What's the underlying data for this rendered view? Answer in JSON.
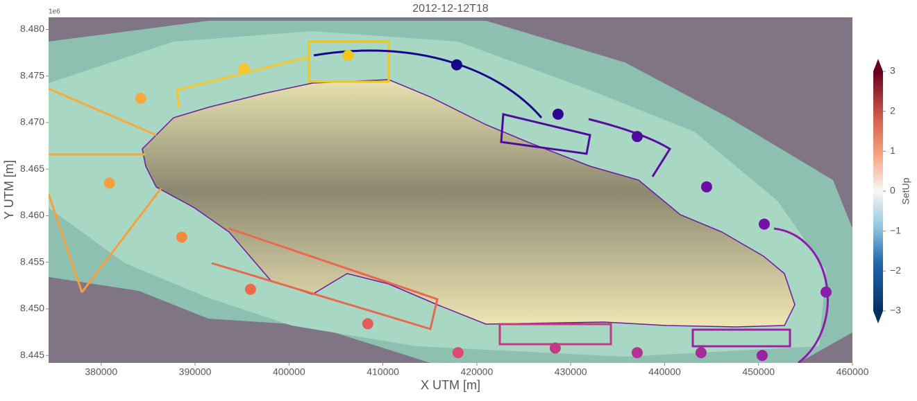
{
  "chart_data": {
    "type": "scatter",
    "title": "2012-12-12T18",
    "x_label": "X UTM [m]",
    "y_label": "Y UTM [m]",
    "y_offset": "1e6",
    "xlim": [
      374400,
      460000
    ],
    "xticks": [
      380000,
      390000,
      400000,
      410000,
      420000,
      430000,
      440000,
      450000,
      460000
    ],
    "ylim": [
      8.4442,
      8.4813
    ],
    "yticks": [
      8.445,
      {
        "value": 8.45,
        "label": "8.450"
      },
      8.455,
      {
        "value": 8.46,
        "label": "8.460"
      },
      8.465,
      {
        "value": 8.47,
        "label": "8.470"
      },
      8.475,
      {
        "value": 8.48,
        "label": "8.480"
      }
    ],
    "x": [
      406300,
      395230,
      384210,
      380890,
      388580,
      395900,
      408390,
      418000,
      428350,
      437080,
      443880,
      450390,
      457190,
      450610,
      444470,
      437080,
      428650,
      417860
    ],
    "values": [
      8.4772,
      8.4758,
      8.4726,
      8.4635,
      8.4577,
      8.4521,
      8.4484,
      8.4453,
      8.4458,
      8.4453,
      8.4453,
      8.445,
      8.4518,
      8.4591,
      8.4631,
      8.4685,
      8.4709,
      8.4762
    ],
    "colors": [
      "#f5c518",
      "#f9c42e",
      "#f9a93a",
      "#f5a03a",
      "#f28a3c",
      "#ec6b4b",
      "#e05d5a",
      "#d94c6e",
      "#c23a82",
      "#b33390",
      "#a62c98",
      "#9b23a3",
      "#8c1aaa",
      "#7312a6",
      "#6a0ea6",
      "#4e0a9c",
      "#2d0591",
      "#14078a"
    ],
    "colorbar": {
      "label": "SetUp",
      "lim": [
        -3,
        3
      ],
      "ticks": [
        {
          "value": -3,
          "label": "−3"
        },
        {
          "value": -2,
          "label": "−2"
        },
        {
          "value": -1,
          "label": "−1"
        },
        0,
        1,
        2,
        3
      ]
    }
  }
}
